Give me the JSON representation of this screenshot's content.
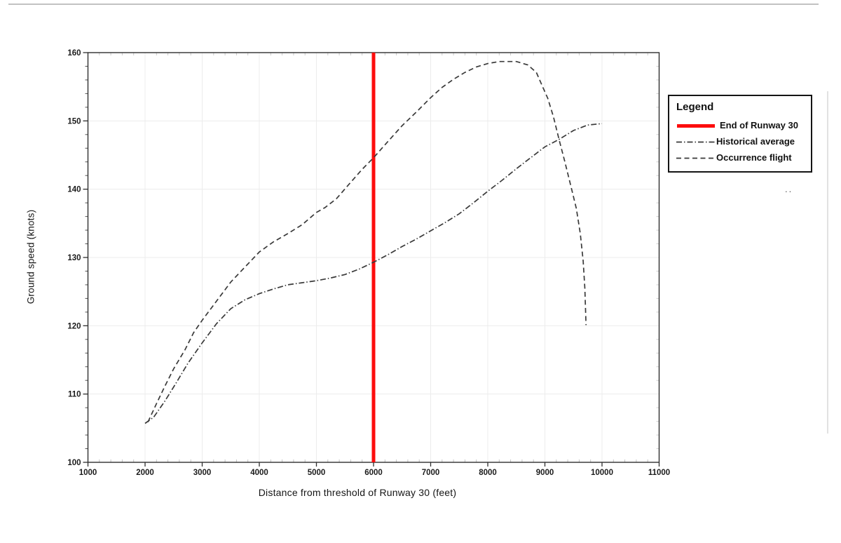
{
  "page": {
    "background": "#ffffff"
  },
  "chart_data": {
    "type": "line",
    "title": "",
    "xlabel": "Distance from threshold of Runway 30 (feet)",
    "ylabel": "Ground speed (knots)",
    "xlim": [
      1000,
      11000
    ],
    "ylim": [
      100,
      160
    ],
    "x_major_tick_step": 1000,
    "x_minor_tick_step": 200,
    "y_major_tick_step": 10,
    "y_minor_tick_step": 2,
    "x_tick_labels": [
      "1000",
      "2000",
      "3000",
      "4000",
      "5000",
      "6000",
      "7000",
      "8000",
      "9000",
      "10000",
      "11000"
    ],
    "y_tick_labels": [
      "100",
      "110",
      "120",
      "130",
      "140",
      "150",
      "160"
    ],
    "grid": true,
    "grid_color": "#ececec",
    "axis_color": "#2f2f2f",
    "reference_line": {
      "x": 6000,
      "label": "End of Runway 30",
      "color": "#fd0d0d",
      "width": 5
    },
    "series": [
      {
        "name": "Historical average",
        "dash": "dash-dot",
        "color": "#3a3a3a",
        "points": [
          [
            2000,
            105.7
          ],
          [
            2150,
            106.6
          ],
          [
            2350,
            109.0
          ],
          [
            2550,
            111.7
          ],
          [
            2750,
            114.5
          ],
          [
            3000,
            117.5
          ],
          [
            3250,
            120.3
          ],
          [
            3500,
            122.5
          ],
          [
            3750,
            123.8
          ],
          [
            4000,
            124.7
          ],
          [
            4250,
            125.4
          ],
          [
            4500,
            126.0
          ],
          [
            4750,
            126.3
          ],
          [
            5000,
            126.6
          ],
          [
            5250,
            127.0
          ],
          [
            5500,
            127.5
          ],
          [
            5750,
            128.3
          ],
          [
            6000,
            129.3
          ],
          [
            6250,
            130.4
          ],
          [
            6500,
            131.6
          ],
          [
            6750,
            132.7
          ],
          [
            7000,
            133.9
          ],
          [
            7250,
            135.1
          ],
          [
            7500,
            136.4
          ],
          [
            7750,
            138.0
          ],
          [
            8000,
            139.7
          ],
          [
            8250,
            141.3
          ],
          [
            8500,
            143.0
          ],
          [
            8750,
            144.6
          ],
          [
            9000,
            146.2
          ],
          [
            9250,
            147.3
          ],
          [
            9500,
            148.6
          ],
          [
            9750,
            149.4
          ],
          [
            10000,
            149.6
          ]
        ]
      },
      {
        "name": "Occurrence flight",
        "dash": "dashed",
        "color": "#3a3a3a",
        "points": [
          [
            2050,
            105.9
          ],
          [
            2200,
            108.6
          ],
          [
            2350,
            111.2
          ],
          [
            2500,
            113.7
          ],
          [
            2700,
            116.5
          ],
          [
            2850,
            119.0
          ],
          [
            3000,
            120.8
          ],
          [
            3250,
            123.6
          ],
          [
            3500,
            126.4
          ],
          [
            3750,
            128.6
          ],
          [
            4000,
            130.8
          ],
          [
            4250,
            132.3
          ],
          [
            4500,
            133.5
          ],
          [
            4750,
            134.8
          ],
          [
            5000,
            136.6
          ],
          [
            5150,
            137.3
          ],
          [
            5350,
            138.6
          ],
          [
            5600,
            141.0
          ],
          [
            5800,
            142.9
          ],
          [
            6000,
            144.6
          ],
          [
            6200,
            146.5
          ],
          [
            6500,
            149.3
          ],
          [
            6750,
            151.3
          ],
          [
            7000,
            153.4
          ],
          [
            7200,
            154.9
          ],
          [
            7400,
            156.1
          ],
          [
            7600,
            157.1
          ],
          [
            7800,
            157.9
          ],
          [
            8000,
            158.4
          ],
          [
            8200,
            158.7
          ],
          [
            8500,
            158.7
          ],
          [
            8700,
            158.2
          ],
          [
            8850,
            157.1
          ],
          [
            8950,
            155.2
          ],
          [
            9050,
            153.3
          ],
          [
            9150,
            150.6
          ],
          [
            9250,
            147.2
          ],
          [
            9350,
            144.0
          ],
          [
            9450,
            140.6
          ],
          [
            9550,
            137.2
          ],
          [
            9620,
            133.5
          ],
          [
            9670,
            129.5
          ],
          [
            9700,
            125.5
          ],
          [
            9720,
            120.1
          ]
        ]
      }
    ],
    "legend": {
      "title": "Legend",
      "position": "right-outside",
      "entries": [
        {
          "label": "End of Runway 30",
          "style": "solid-thick",
          "color": "#fd0d0d"
        },
        {
          "label": "Historical average",
          "style": "dash-dot",
          "color": "#3a3a3a"
        },
        {
          "label": "Occurrence flight",
          "style": "dashed",
          "color": "#3a3a3a"
        }
      ]
    }
  },
  "artifacts": {
    "stray_dots": ".."
  }
}
